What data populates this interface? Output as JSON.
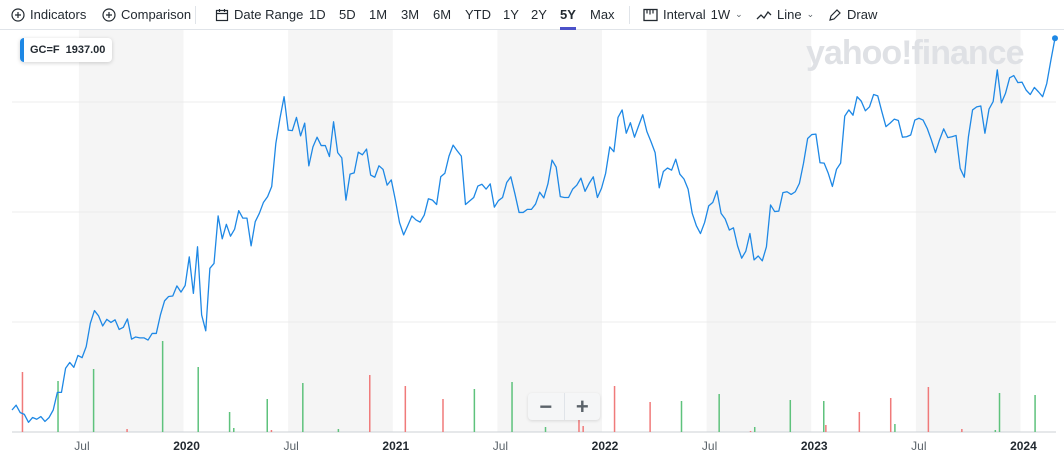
{
  "toolbar": {
    "indicators": "Indicators",
    "comparison": "Comparison",
    "date_range": "Date Range",
    "ranges": [
      "1D",
      "5D",
      "1M",
      "3M",
      "6M",
      "YTD",
      "1Y",
      "2Y",
      "5Y",
      "Max"
    ],
    "selected_range": "5Y",
    "interval_label": "Interval",
    "interval_value": "1W",
    "line_label": "Line",
    "draw_label": "Draw"
  },
  "tooltip": {
    "symbol": "GC=F",
    "value": "1937.00"
  },
  "watermark": "yahoo!finance",
  "zoom": {
    "minus": "−",
    "plus": "+"
  },
  "colors": {
    "line": "#1e88e5",
    "up": "#5ec27c",
    "down": "#f07a7a",
    "band": "#f5f5f5"
  },
  "chart_data": {
    "type": "line",
    "symbol": "GC=F",
    "interval": "1W",
    "x_range": [
      2019.18,
      2024.17
    ],
    "y_range": [
      1250,
      2170
    ],
    "gridlines": [
      1500,
      1750,
      2000
    ],
    "x_ticks": [
      {
        "v": 2019.5,
        "label": "Jul"
      },
      {
        "v": 2020,
        "label": "2020"
      },
      {
        "v": 2020.5,
        "label": "Jul"
      },
      {
        "v": 2021,
        "label": "2021"
      },
      {
        "v": 2021.5,
        "label": "Jul"
      },
      {
        "v": 2022,
        "label": "2022"
      },
      {
        "v": 2022.5,
        "label": "Jul"
      },
      {
        "v": 2023,
        "label": "2023"
      },
      {
        "v": 2023.5,
        "label": "Jul"
      },
      {
        "v": 2024,
        "label": "2024"
      }
    ],
    "prices": [
      1300,
      1311,
      1294,
      1290,
      1272,
      1283,
      1279,
      1285,
      1274,
      1283,
      1300,
      1340,
      1340,
      1395,
      1408,
      1397,
      1424,
      1419,
      1444,
      1497,
      1526,
      1514,
      1491,
      1506,
      1499,
      1505,
      1483,
      1488,
      1507,
      1461,
      1466,
      1464,
      1464,
      1459,
      1474,
      1474,
      1516,
      1548,
      1558,
      1559,
      1582,
      1568,
      1583,
      1648,
      1565,
      1671,
      1516,
      1480,
      1622,
      1633,
      1741,
      1689,
      1722,
      1695,
      1711,
      1753,
      1736,
      1736,
      1673,
      1728,
      1747,
      1772,
      1785,
      1808,
      1906,
      1963,
      2012,
      1936,
      1935,
      1965,
      1923,
      1952,
      1855,
      1898,
      1920,
      1901,
      1901,
      1876,
      1955,
      1885,
      1873,
      1777,
      1836,
      1839,
      1886,
      1880,
      1893,
      1834,
      1829,
      1855,
      1847,
      1811,
      1823,
      1777,
      1726,
      1698,
      1719,
      1741,
      1732,
      1727,
      1743,
      1780,
      1777,
      1767,
      1830,
      1838,
      1877,
      1902,
      1889,
      1877,
      1767,
      1775,
      1783,
      1809,
      1813,
      1802,
      1814,
      1761,
      1776,
      1783,
      1817,
      1830,
      1791,
      1749,
      1749,
      1756,
      1756,
      1768,
      1795,
      1782,
      1814,
      1868,
      1852,
      1785,
      1783,
      1783,
      1802,
      1811,
      1827,
      1797,
      1815,
      1830,
      1783,
      1804,
      1838,
      1898,
      1887,
      1965,
      1982,
      1929,
      1953,
      1920,
      1946,
      1971,
      1933,
      1910,
      1885,
      1805,
      1842,
      1850,
      1845,
      1870,
      1836,
      1825,
      1802,
      1747,
      1719,
      1701,
      1726,
      1764,
      1772,
      1798,
      1747,
      1734,
      1709,
      1714,
      1673,
      1645,
      1661,
      1701,
      1641,
      1650,
      1639,
      1671,
      1766,
      1751,
      1752,
      1794,
      1796,
      1790,
      1796,
      1815,
      1861,
      1917,
      1926,
      1927,
      1862,
      1861,
      1838,
      1808,
      1847,
      1861,
      1968,
      1982,
      1970,
      2012,
      2002,
      1980,
      1989,
      2017,
      2014,
      1978,
      1944,
      1952,
      1961,
      1958,
      1920,
      1921,
      1925,
      1959,
      1963,
      1959,
      1940,
      1914,
      1885,
      1914,
      1939,
      1919,
      1921,
      1924,
      1849,
      1829,
      1921,
      1982,
      1989,
      1991,
      1929,
      1984,
      2001,
      2073,
      1998,
      2020,
      2055,
      2060,
      2044,
      2045,
      2027,
      2017,
      2033,
      2023,
      2012,
      2042,
      2095,
      2145
    ],
    "volume": [
      {
        "t": 2019.23,
        "v": 60,
        "dir": "down"
      },
      {
        "t": 2019.4,
        "v": 51,
        "dir": "up"
      },
      {
        "t": 2019.57,
        "v": 63,
        "dir": "up"
      },
      {
        "t": 2019.73,
        "v": 3,
        "dir": "down"
      },
      {
        "t": 2019.9,
        "v": 91,
        "dir": "up"
      },
      {
        "t": 2020.07,
        "v": 65,
        "dir": "up"
      },
      {
        "t": 2020.22,
        "v": 20,
        "dir": "up"
      },
      {
        "t": 2020.24,
        "v": 4,
        "dir": "up"
      },
      {
        "t": 2020.4,
        "v": 33,
        "dir": "up"
      },
      {
        "t": 2020.42,
        "v": 2,
        "dir": "down"
      },
      {
        "t": 2020.57,
        "v": 49,
        "dir": "up"
      },
      {
        "t": 2020.74,
        "v": 3,
        "dir": "up"
      },
      {
        "t": 2020.89,
        "v": 57,
        "dir": "down"
      },
      {
        "t": 2021.06,
        "v": 46,
        "dir": "down"
      },
      {
        "t": 2021.24,
        "v": 33,
        "dir": "down"
      },
      {
        "t": 2021.39,
        "v": 43,
        "dir": "up"
      },
      {
        "t": 2021.57,
        "v": 50,
        "dir": "up"
      },
      {
        "t": 2021.73,
        "v": 5,
        "dir": "up"
      },
      {
        "t": 2021.89,
        "v": 39,
        "dir": "down"
      },
      {
        "t": 2021.91,
        "v": 6,
        "dir": "down"
      },
      {
        "t": 2022.06,
        "v": 46,
        "dir": "down"
      },
      {
        "t": 2022.23,
        "v": 30,
        "dir": "down"
      },
      {
        "t": 2022.38,
        "v": 31,
        "dir": "up"
      },
      {
        "t": 2022.56,
        "v": 38,
        "dir": "up"
      },
      {
        "t": 2022.71,
        "v": 1,
        "dir": "down"
      },
      {
        "t": 2022.73,
        "v": 5,
        "dir": "up"
      },
      {
        "t": 2022.9,
        "v": 32,
        "dir": "up"
      },
      {
        "t": 2023.06,
        "v": 31,
        "dir": "up"
      },
      {
        "t": 2023.07,
        "v": 7,
        "dir": "down"
      },
      {
        "t": 2023.23,
        "v": 20,
        "dir": "down"
      },
      {
        "t": 2023.38,
        "v": 34,
        "dir": "down"
      },
      {
        "t": 2023.4,
        "v": 8,
        "dir": "up"
      },
      {
        "t": 2023.56,
        "v": 45,
        "dir": "down"
      },
      {
        "t": 2023.72,
        "v": 3,
        "dir": "down"
      },
      {
        "t": 2023.88,
        "v": 2,
        "dir": "up"
      },
      {
        "t": 2023.9,
        "v": 39,
        "dir": "up"
      },
      {
        "t": 2024.07,
        "v": 37,
        "dir": "up"
      }
    ]
  }
}
